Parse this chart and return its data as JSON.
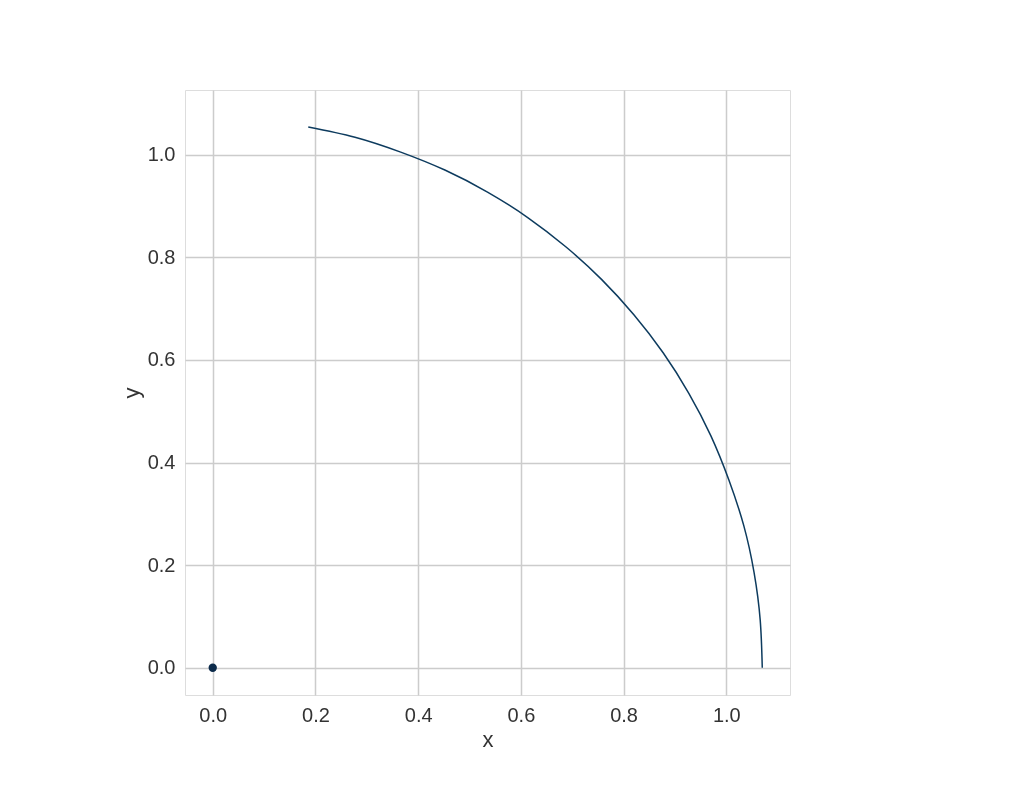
{
  "chart_data": {
    "type": "line",
    "xlabel": "x",
    "ylabel": "y",
    "xlim": [
      -0.054,
      1.124
    ],
    "ylim": [
      -0.053,
      1.126
    ],
    "xticks": [
      {
        "value": 0,
        "label": "0.0"
      },
      0.2,
      0.4,
      0.6,
      0.8,
      {
        "value": 1,
        "label": "1.0"
      }
    ],
    "yticks": [
      {
        "value": 0,
        "label": "0.0"
      },
      0.2,
      0.4,
      0.6,
      0.8,
      {
        "value": 1,
        "label": "1.0"
      }
    ],
    "grid": true,
    "series": [
      {
        "color": "#0d3b5e",
        "x": [
          1.07,
          1.066,
          1.054,
          1.034,
          1.005,
          0.97,
          0.927,
          0.877,
          0.82,
          0.757,
          0.688,
          0.614,
          0.535,
          0.452,
          0.366,
          0.277,
          0.186
        ],
        "values": [
          0,
          0.093,
          0.186,
          0.277,
          0.366,
          0.452,
          0.535,
          0.614,
          0.688,
          0.757,
          0.82,
          0.877,
          0.927,
          0.97,
          1.005,
          1.034,
          1.054
        ]
      },
      {
        "type": "scatter",
        "color": "#0b2a4a",
        "marker": "circle",
        "x": [
          0
        ],
        "values": [
          0
        ]
      }
    ]
  }
}
